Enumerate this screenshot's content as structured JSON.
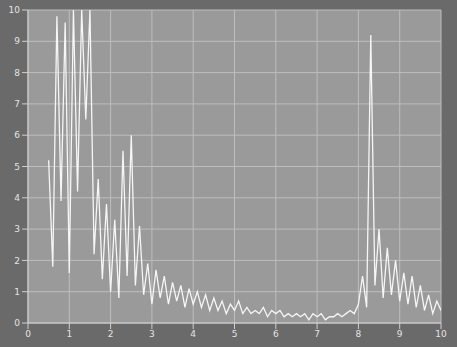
{
  "chart_data": {
    "type": "line",
    "xlim": [
      0,
      10
    ],
    "xticks": [
      0,
      1,
      2,
      3,
      4,
      5,
      6,
      7,
      8,
      9,
      10
    ],
    "ylim": [
      0,
      10
    ],
    "yticks": [
      0,
      1,
      2,
      3,
      4,
      5,
      6,
      7,
      8,
      9,
      10
    ],
    "grid": true,
    "color": "#f6f6f6",
    "x": [
      0.5,
      0.6,
      0.7,
      0.8,
      0.9,
      1.0,
      1.1,
      1.2,
      1.3,
      1.4,
      1.5,
      1.6,
      1.7,
      1.8,
      1.9,
      2.0,
      2.1,
      2.2,
      2.3,
      2.4,
      2.5,
      2.6,
      2.7,
      2.8,
      2.9,
      3.0,
      3.1,
      3.2,
      3.3,
      3.4,
      3.5,
      3.6,
      3.7,
      3.8,
      3.9,
      4.0,
      4.1,
      4.2,
      4.3,
      4.4,
      4.5,
      4.6,
      4.7,
      4.8,
      4.9,
      5.0,
      5.1,
      5.2,
      5.3,
      5.4,
      5.5,
      5.6,
      5.7,
      5.8,
      5.9,
      6.0,
      6.1,
      6.2,
      6.3,
      6.4,
      6.5,
      6.6,
      6.7,
      6.8,
      6.9,
      7.0,
      7.1,
      7.2,
      7.3,
      7.4,
      7.5,
      7.6,
      7.7,
      7.8,
      7.9,
      8.0,
      8.1,
      8.2,
      8.3,
      8.4,
      8.5,
      8.6,
      8.7,
      8.8,
      8.9,
      9.0,
      9.1,
      9.2,
      9.3,
      9.4,
      9.5,
      9.6,
      9.7,
      9.8,
      9.9,
      10.0
    ],
    "values": [
      5.2,
      1.8,
      9.8,
      3.9,
      9.6,
      1.6,
      10,
      4.2,
      10,
      6.5,
      10,
      2.2,
      4.6,
      1.4,
      3.8,
      1.0,
      3.3,
      0.8,
      5.5,
      1.5,
      6.0,
      1.2,
      3.1,
      0.9,
      1.9,
      0.6,
      1.7,
      0.8,
      1.5,
      0.6,
      1.3,
      0.7,
      1.2,
      0.5,
      1.1,
      0.6,
      1.0,
      0.5,
      0.9,
      0.4,
      0.8,
      0.4,
      0.7,
      0.3,
      0.6,
      0.4,
      0.7,
      0.3,
      0.5,
      0.3,
      0.4,
      0.3,
      0.5,
      0.2,
      0.4,
      0.3,
      0.4,
      0.2,
      0.3,
      0.2,
      0.3,
      0.2,
      0.3,
      0.1,
      0.3,
      0.2,
      0.3,
      0.1,
      0.2,
      0.2,
      0.3,
      0.2,
      0.3,
      0.4,
      0.3,
      0.6,
      1.5,
      0.5,
      9.2,
      1.2,
      3.0,
      0.8,
      2.4,
      0.9,
      2.0,
      0.7,
      1.6,
      0.6,
      1.5,
      0.5,
      1.2,
      0.4,
      0.9,
      0.3,
      0.7,
      0.4
    ]
  }
}
